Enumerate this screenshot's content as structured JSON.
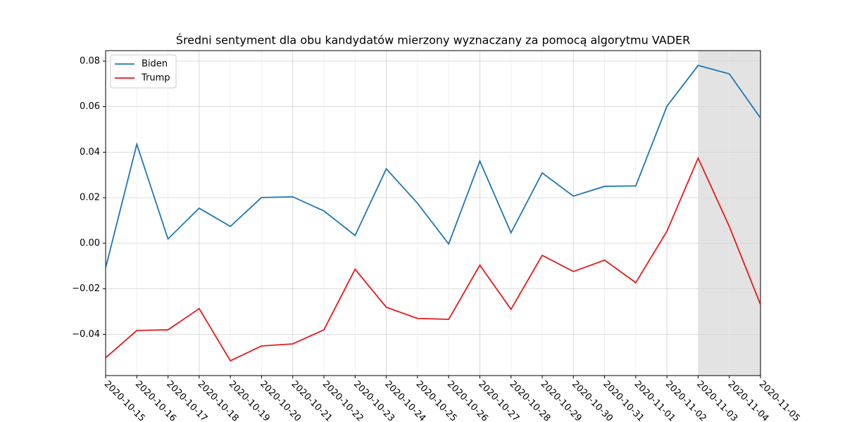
{
  "chart_data": {
    "type": "line",
    "title": "Średni sentyment dla obu kandydatów mierzony wyznaczany za pomocą algorytmu VADER",
    "x": [
      "2020-10-15",
      "2020-10-16",
      "2020-10-17",
      "2020-10-18",
      "2020-10-19",
      "2020-10-20",
      "2020-10-21",
      "2020-10-22",
      "2020-10-23",
      "2020-10-24",
      "2020-10-25",
      "2020-10-26",
      "2020-10-27",
      "2020-10-28",
      "2020-10-29",
      "2020-10-30",
      "2020-10-31",
      "2020-11-01",
      "2020-11-02",
      "2020-11-03",
      "2020-11-04",
      "2020-11-05"
    ],
    "series": [
      {
        "name": "Biden",
        "color": "#1f77b4",
        "values": [
          -0.0108,
          0.0435,
          0.0019,
          0.0154,
          0.0074,
          0.0201,
          0.0204,
          0.0142,
          0.0034,
          0.0327,
          0.0176,
          -0.0003,
          0.0361,
          0.0046,
          0.0309,
          0.0207,
          0.025,
          0.0252,
          0.0602,
          0.0781,
          0.0744,
          0.055
        ]
      },
      {
        "name": "Trump",
        "color": "#e41a1c",
        "values": [
          -0.0503,
          -0.0383,
          -0.038,
          -0.0287,
          -0.0516,
          -0.0451,
          -0.0442,
          -0.038,
          -0.0114,
          -0.0281,
          -0.033,
          -0.0334,
          -0.0096,
          -0.029,
          -0.0053,
          -0.0124,
          -0.0074,
          -0.0173,
          0.0053,
          0.0374,
          0.0074,
          -0.0269
        ]
      }
    ],
    "ylim": [
      -0.0581,
      0.0846
    ],
    "yticks": [
      {
        "value": -0.04,
        "label": "−0.04"
      },
      {
        "value": -0.02,
        "label": "−0.02"
      },
      {
        "value": 0,
        "label": "0.00"
      },
      0.02,
      0.04,
      0.06,
      0.08
    ],
    "shaded_range": [
      "2020-11-03",
      "2020-11-05"
    ],
    "grid": true,
    "legend": "upper left"
  }
}
